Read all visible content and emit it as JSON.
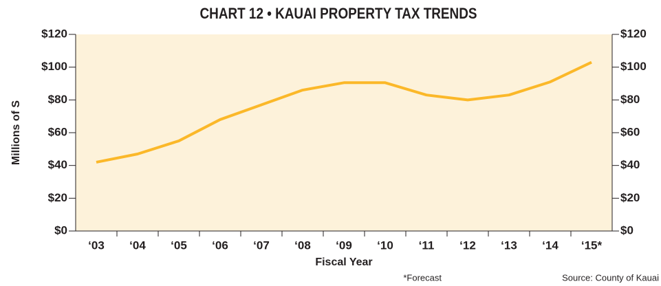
{
  "chart_data": {
    "type": "line",
    "title": "CHART 12 • KAUAI PROPERTY TAX TRENDS",
    "x_label": "Fiscal Year",
    "y_label": "Millions of S",
    "notes": [
      "*Forecast",
      "Source: County of Kauai"
    ],
    "categories": [
      "‘03",
      "‘04",
      "‘05",
      "‘06",
      "‘07",
      "‘08",
      "‘09",
      "‘10",
      "‘11",
      "‘12",
      "‘13",
      "‘14",
      "‘15*"
    ],
    "series": [
      {
        "name": "Property tax",
        "color": "#fbb829",
        "values": [
          42,
          47,
          55,
          68,
          77,
          86,
          90.5,
          90.5,
          83,
          80,
          83,
          91,
          103
        ]
      }
    ],
    "ylim": [
      0,
      120
    ],
    "yticks": [
      {
        "value": 0,
        "label": "$0"
      },
      {
        "value": 20,
        "label": "$20"
      },
      {
        "value": 40,
        "label": "$40"
      },
      {
        "value": 60,
        "label": "$60"
      },
      {
        "value": 80,
        "label": "$80"
      },
      {
        "value": 100,
        "label": "$100"
      },
      {
        "value": 120,
        "label": "$120"
      }
    ],
    "y2lim": [
      0,
      120
    ],
    "y2ticks": [
      {
        "value": 0,
        "label": "$0"
      },
      {
        "value": 20,
        "label": "$20"
      },
      {
        "value": 40,
        "label": "$40"
      },
      {
        "value": 60,
        "label": "$60"
      },
      {
        "value": 80,
        "label": "$80"
      },
      {
        "value": 100,
        "label": "$100"
      },
      {
        "value": 120,
        "label": "$120"
      }
    ],
    "background": "#fdf2da"
  }
}
